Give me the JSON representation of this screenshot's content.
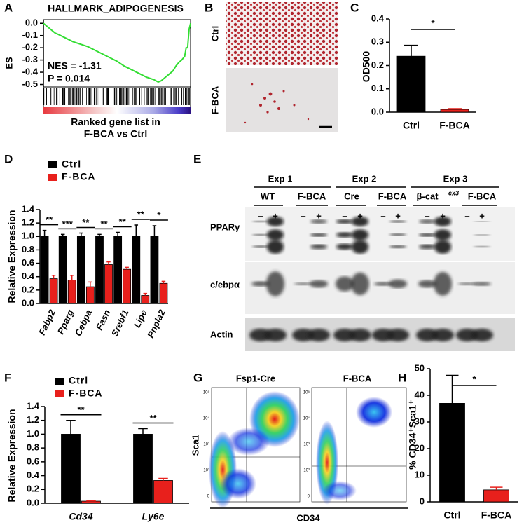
{
  "figure": {
    "panels": [
      "A",
      "B",
      "C",
      "D",
      "E",
      "F",
      "G",
      "H"
    ],
    "micro": {
      "labels": [
        "Ctrl",
        "F-BCA"
      ]
    },
    "blot": {
      "experiments": [
        "Exp 1",
        "Exp 2",
        "Exp 3"
      ],
      "groups": [
        "WT",
        "F-BCA",
        "Cre",
        "F-BCA",
        "β-cat",
        "F-BCA"
      ],
      "superscript": "ex3",
      "lanes": [
        "–",
        "+",
        "–",
        "+",
        "–",
        "+",
        "–",
        "+",
        "–",
        "+",
        "–",
        "+"
      ],
      "proteins": [
        "PPARγ",
        "c/ebpα",
        "Actin"
      ]
    },
    "flow": {
      "titles": [
        "Fsp1-Cre",
        "F-BCA"
      ],
      "ylabel": "Sca1",
      "xlabel": "CD34",
      "ticks": [
        "10⁵",
        "10⁴",
        "10³",
        "10²",
        "0"
      ]
    }
  },
  "chart_data": [
    {
      "type": "line",
      "title": "HALLMARK_ADIPOGENESIS",
      "ylabel": "ES",
      "xlabel": [
        "Ranked gene list in",
        "F-BCA vs Ctrl"
      ],
      "annotations": [
        "NES = -1.31",
        "P = 0.014"
      ],
      "color": "#33dd33",
      "x": [
        0,
        2,
        4,
        6,
        8,
        10,
        15,
        20,
        25,
        30,
        35,
        40,
        45,
        50,
        55,
        60,
        65,
        70,
        75,
        78,
        80,
        82,
        85,
        88,
        90,
        92,
        94,
        96,
        97,
        98,
        99,
        100
      ],
      "values": [
        0,
        -0.02,
        -0.04,
        -0.06,
        -0.08,
        -0.09,
        -0.12,
        -0.15,
        -0.17,
        -0.19,
        -0.22,
        -0.25,
        -0.28,
        -0.31,
        -0.35,
        -0.38,
        -0.41,
        -0.44,
        -0.46,
        -0.48,
        -0.47,
        -0.45,
        -0.42,
        -0.39,
        -0.35,
        -0.32,
        -0.3,
        -0.27,
        -0.2,
        -0.2,
        -0.05,
        0
      ],
      "xlim": [
        0,
        100
      ],
      "ylim": [
        -0.52,
        0.03
      ],
      "yticks": [
        {
          "value": 0,
          "label": "0.0"
        },
        -0.1,
        -0.2,
        -0.3,
        -0.4,
        -0.5
      ]
    },
    {
      "type": "bar",
      "ylabel": "OD500",
      "categories": [
        "Ctrl",
        "F-BCA"
      ],
      "series": [
        {
          "values": [
            0.24,
            0.012
          ],
          "errors": [
            0.047,
            0.003
          ]
        }
      ],
      "colors": [
        "#000000",
        "#e8201c"
      ],
      "ylim": [
        0,
        0.4
      ],
      "yticks": [
        {
          "value": 0,
          "label": "0.0"
        },
        0.1,
        0.2,
        0.3,
        0.4
      ],
      "annotations": [
        "*"
      ]
    },
    {
      "type": "bar",
      "ylabel": "Relative Expression",
      "categories": [
        "Fabp2",
        "Pparg",
        "Cebpa",
        "Fasn",
        "Srebf1",
        "Lipe",
        "Pnpla2"
      ],
      "series": [
        {
          "name": "Ctrl",
          "color": "#000000",
          "values": [
            1,
            1,
            1,
            1,
            1,
            1,
            1
          ],
          "errors": [
            0.09,
            0.03,
            0.05,
            0.03,
            0.06,
            0.17,
            0.16
          ]
        },
        {
          "name": "F-BCA",
          "color": "#e8201c",
          "values": [
            0.37,
            0.35,
            0.25,
            0.58,
            0.51,
            0.12,
            0.3
          ],
          "errors": [
            0.05,
            0.07,
            0.07,
            0.04,
            0.03,
            0.03,
            0.03
          ]
        }
      ],
      "annotations": [
        "**",
        "***",
        "**",
        "**",
        "**",
        "**",
        "*"
      ],
      "ylim": [
        0,
        1.4
      ],
      "yticks": [
        {
          "value": 0,
          "label": "0.0"
        },
        0.2,
        0.4,
        0.6,
        0.8,
        {
          "value": 1,
          "label": "1.0"
        },
        1.2,
        1.4
      ]
    },
    {
      "type": "bar",
      "ylabel": "Relative Expression",
      "categories": [
        "Cd34",
        "Ly6e"
      ],
      "series": [
        {
          "name": "Ctrl",
          "color": "#000000",
          "values": [
            1.0,
            1.0
          ],
          "errors": [
            0.2,
            0.08
          ]
        },
        {
          "name": "F-BCA",
          "color": "#e8201c",
          "values": [
            0.03,
            0.33
          ],
          "errors": [
            0.005,
            0.03
          ]
        }
      ],
      "annotations": [
        "**",
        "**"
      ],
      "ylim": [
        0,
        1.4
      ],
      "yticks": [
        {
          "value": 0,
          "label": "0.0"
        },
        0.2,
        0.4,
        0.6,
        0.8,
        {
          "value": 1,
          "label": "1.0"
        },
        1.2,
        1.4
      ]
    },
    {
      "type": "bar",
      "ylabel": "% CD34⁺Sca1⁺",
      "categories": [
        "Ctrl",
        "F-BCA"
      ],
      "series": [
        {
          "values": [
            37,
            4.5
          ],
          "errors": [
            10.5,
            1
          ]
        }
      ],
      "colors": [
        "#000000",
        "#e8201c"
      ],
      "ylim": [
        0,
        50
      ],
      "yticks": [
        0,
        10,
        20,
        30,
        40,
        50
      ],
      "annotations": [
        "*"
      ]
    }
  ]
}
